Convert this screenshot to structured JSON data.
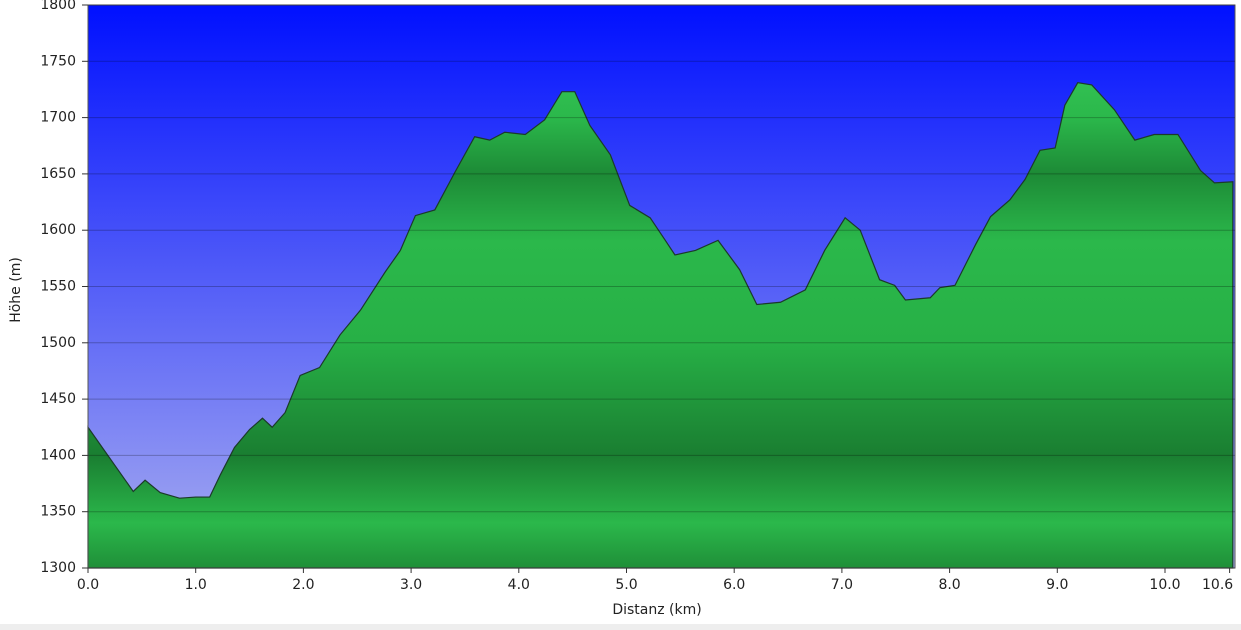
{
  "chart_data": {
    "type": "area",
    "x_label": "Distanz  (km)",
    "y_label": "Höhe (m)",
    "x": [
      0,
      0.42,
      0.53,
      0.67,
      0.85,
      1.0,
      1.13,
      1.23,
      1.36,
      1.5,
      1.62,
      1.71,
      1.83,
      1.97,
      2.15,
      2.34,
      2.53,
      2.76,
      2.9,
      3.04,
      3.22,
      3.41,
      3.59,
      3.73,
      3.87,
      4.06,
      4.24,
      4.4,
      4.52,
      4.66,
      4.85,
      5.03,
      5.22,
      5.36,
      5.45,
      5.64,
      5.85,
      6.05,
      6.21,
      6.43,
      6.66,
      6.84,
      7.03,
      7.17,
      7.35,
      7.49,
      7.59,
      7.82,
      7.91,
      8.05,
      8.24,
      8.38,
      8.56,
      8.7,
      8.84,
      8.98,
      9.07,
      9.19,
      9.32,
      9.53,
      9.72,
      9.9,
      10.12,
      10.33,
      10.46,
      10.63
    ],
    "values": [
      1425,
      1368,
      1378,
      1367,
      1362,
      1363,
      1363,
      1383,
      1407,
      1423,
      1433,
      1425,
      1438,
      1471,
      1478,
      1507,
      1529,
      1563,
      1582,
      1613,
      1618,
      1652,
      1683,
      1680,
      1687,
      1685,
      1698,
      1723,
      1723,
      1693,
      1667,
      1622,
      1611,
      1591,
      1578,
      1582,
      1591,
      1565,
      1534,
      1536,
      1547,
      1582,
      1611,
      1600,
      1556,
      1551,
      1538,
      1540,
      1549,
      1551,
      1587,
      1612,
      1627,
      1645,
      1671,
      1673,
      1711,
      1731,
      1729,
      1707,
      1680,
      1685,
      1685,
      1653,
      1642,
      1643
    ],
    "color": "#2ab34a",
    "xlim": [
      0,
      10.65
    ],
    "ylim": [
      1300,
      1800
    ],
    "xticks": [
      {
        "value": 0,
        "label": "0.0"
      },
      {
        "value": 1,
        "label": "1.0"
      },
      {
        "value": 2,
        "label": "2.0"
      },
      {
        "value": 3,
        "label": "3.0"
      },
      {
        "value": 4,
        "label": "4.0"
      },
      {
        "value": 5,
        "label": "5.0"
      },
      {
        "value": 6,
        "label": "6.0"
      },
      {
        "value": 7,
        "label": "7.0"
      },
      {
        "value": 8,
        "label": "8.0"
      },
      {
        "value": 9,
        "label": "9.0"
      },
      {
        "value": 10,
        "label": "10.0"
      },
      10.6
    ],
    "yticks": [
      1300,
      1350,
      1400,
      1450,
      1500,
      1550,
      1600,
      1650,
      1700,
      1750,
      1800
    ],
    "grid": true
  }
}
